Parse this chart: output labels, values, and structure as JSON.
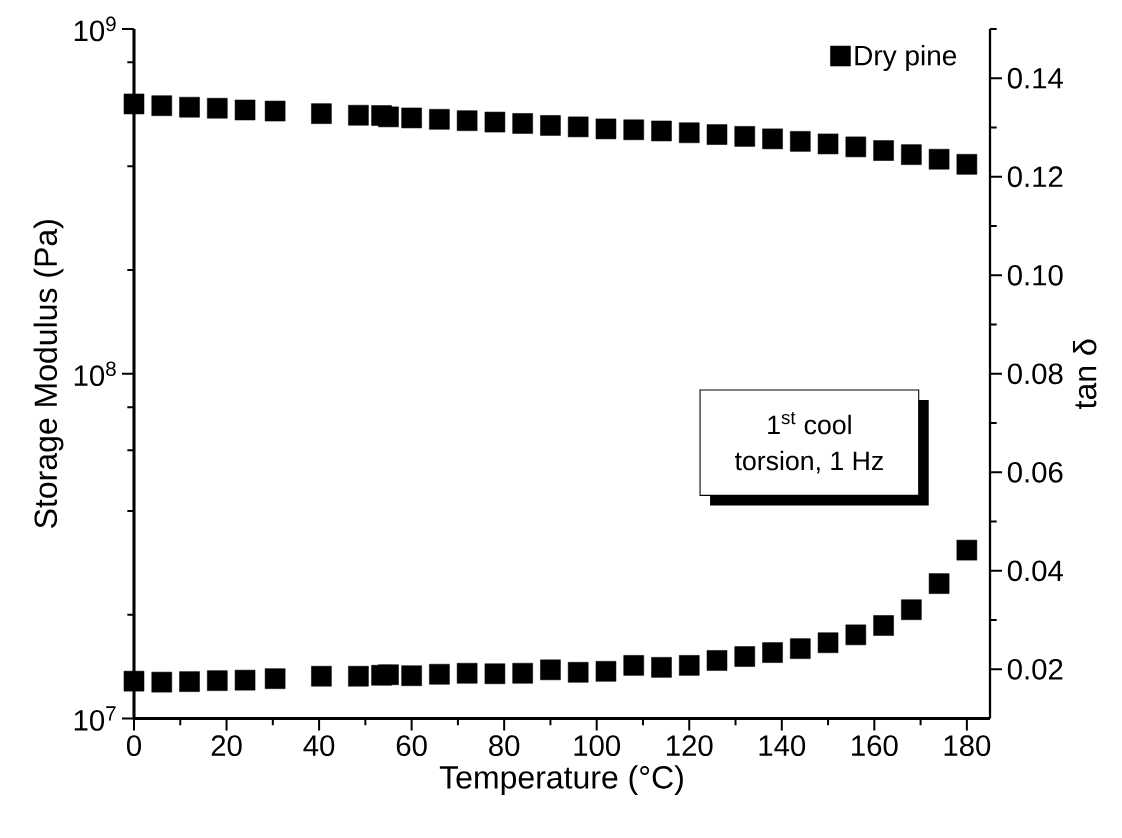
{
  "chart_data": {
    "type": "scatter",
    "xlabel": "Temperature (°C)",
    "ylabel": "Storage Modulus (Pa)",
    "y2label": "tan δ",
    "x": [
      0,
      6,
      12,
      18,
      24,
      30.5,
      40.5,
      48.5,
      53.5,
      55,
      60,
      66,
      72,
      78,
      84,
      90,
      96,
      102,
      108,
      114,
      120,
      126,
      132,
      138,
      144,
      150,
      156,
      162,
      168,
      174,
      180
    ],
    "series": [
      {
        "name": "Dry pine",
        "color": "#000000",
        "values": [
          606000000.0,
          599000000.0,
          593000000.0,
          589000000.0,
          582000000.0,
          578000000.0,
          568000000.0,
          562000000.0,
          561000000.0,
          556000000.0,
          552000000.0,
          547000000.0,
          542000000.0,
          537000000.0,
          532000000.0,
          525000000.0,
          520000000.0,
          513000000.0,
          510000000.0,
          506000000.0,
          500000000.0,
          494000000.0,
          488000000.0,
          480000000.0,
          472000000.0,
          464000000.0,
          455000000.0,
          444000000.0,
          432000000.0,
          419000000.0,
          405000000.0
        ]
      },
      {
        "color": "#000000",
        "axis": "y2",
        "values": [
          0.0176,
          0.0174,
          0.0175,
          0.0177,
          0.0178,
          0.0181,
          0.0186,
          0.0186,
          0.0188,
          0.0189,
          0.0187,
          0.019,
          0.0192,
          0.0191,
          0.0192,
          0.0199,
          0.0194,
          0.0196,
          0.0208,
          0.0204,
          0.0208,
          0.0218,
          0.0226,
          0.0234,
          0.0242,
          0.0254,
          0.027,
          0.0289,
          0.0321,
          0.0374,
          0.0442
        ]
      }
    ],
    "xlim": [
      0,
      185
    ],
    "ylim": [
      10000000.0,
      1000000000.0
    ],
    "y2lim": [
      0.01,
      0.15
    ],
    "xticks": [
      0,
      {
        "value": 10,
        "label": null
      },
      20,
      {
        "value": 30,
        "label": null
      },
      40,
      {
        "value": 50,
        "label": null
      },
      60,
      {
        "value": 70,
        "label": null
      },
      80,
      {
        "value": 90,
        "label": null
      },
      100,
      {
        "value": 110,
        "label": null
      },
      120,
      {
        "value": 130,
        "label": null
      },
      140,
      {
        "value": 150,
        "label": null
      },
      160,
      {
        "value": 170,
        "label": null
      },
      180
    ],
    "yticks": [
      {
        "value": 10000000.0,
        "label": "10$^{7}$"
      },
      {
        "value": 20000000.0,
        "label": null
      },
      {
        "value": 40000000.0,
        "label": null
      },
      {
        "value": 60000000.0,
        "label": null
      },
      {
        "value": 80000000.0,
        "label": null
      },
      {
        "value": 100000000.0,
        "label": "10$^{8}$"
      },
      {
        "value": 200000000.0,
        "label": null
      },
      {
        "value": 400000000.0,
        "label": null
      },
      {
        "value": 600000000.0,
        "label": null
      },
      {
        "value": 800000000.0,
        "label": null
      },
      {
        "value": 1000000000.0,
        "label": "10$^{9}$"
      }
    ],
    "y2ticks": [
      0.02,
      {
        "value": 0.03,
        "label": null
      },
      0.04,
      {
        "value": 0.05,
        "label": null
      },
      0.06,
      {
        "value": 0.07,
        "label": null
      },
      0.08,
      {
        "value": 0.09,
        "label": null
      },
      {
        "value": 0.1,
        "label": "0.10"
      },
      {
        "value": 0.11,
        "label": null
      },
      0.12,
      {
        "value": 0.13,
        "label": null
      },
      0.14,
      {
        "value": 0.15,
        "label": null
      }
    ],
    "log": "y",
    "legend": "top right",
    "marker": "square",
    "grid": false,
    "annotations": [
      "1$^{st}$ cool",
      "torsion, 1 Hz"
    ]
  }
}
